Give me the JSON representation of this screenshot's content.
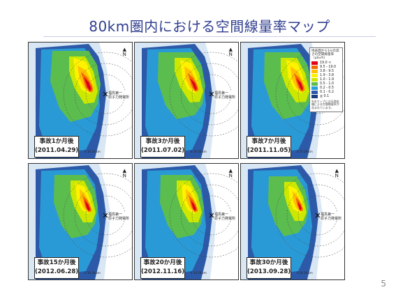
{
  "title": "80km圏内における空間線量率マップ",
  "legend": {
    "title": "地表面から1mの高さの空間線量率（μSv/h）",
    "items": [
      {
        "label": "19.0 <",
        "color": "#e2001a"
      },
      {
        "label": "9.5 - 19.0",
        "color": "#f46a00"
      },
      {
        "label": "3.8 - 9.5",
        "color": "#ffc000"
      },
      {
        "label": "1.9 - 3.8",
        "color": "#fff200"
      },
      {
        "label": "1.0 - 1.9",
        "color": "#cde800"
      },
      {
        "label": "0.5 - 1.0",
        "color": "#5cbd4f"
      },
      {
        "label": "0.2 - 0.5",
        "color": "#2a9ed8"
      },
      {
        "label": "0.1 - 0.2",
        "color": "#2c5aa8"
      },
      {
        "label": "≦ 0.1",
        "color": "#1d3f7f"
      }
    ],
    "note": "※本マップには天然核種による空間線量率が含まれています。"
  },
  "plant": {
    "line1": "福島第一",
    "line2": "原子力発電所"
  },
  "panels": [
    {
      "label": "事故1か月後",
      "date": "(2011.04.29)"
    },
    {
      "label": "事故3か月後",
      "date": "(2011.07.02)"
    },
    {
      "label": "事故7か月後",
      "date": "(2011.11.05)"
    },
    {
      "label": "事故15か月後",
      "date": "(2012.06.28)"
    },
    {
      "label": "事故20か月後",
      "date": "(2012.11.16)"
    },
    {
      "label": "事故30か月後",
      "date": "(2013.09.28)"
    }
  ],
  "scale_text": "0 10 20 km",
  "north_label": "N",
  "page_number": "5"
}
